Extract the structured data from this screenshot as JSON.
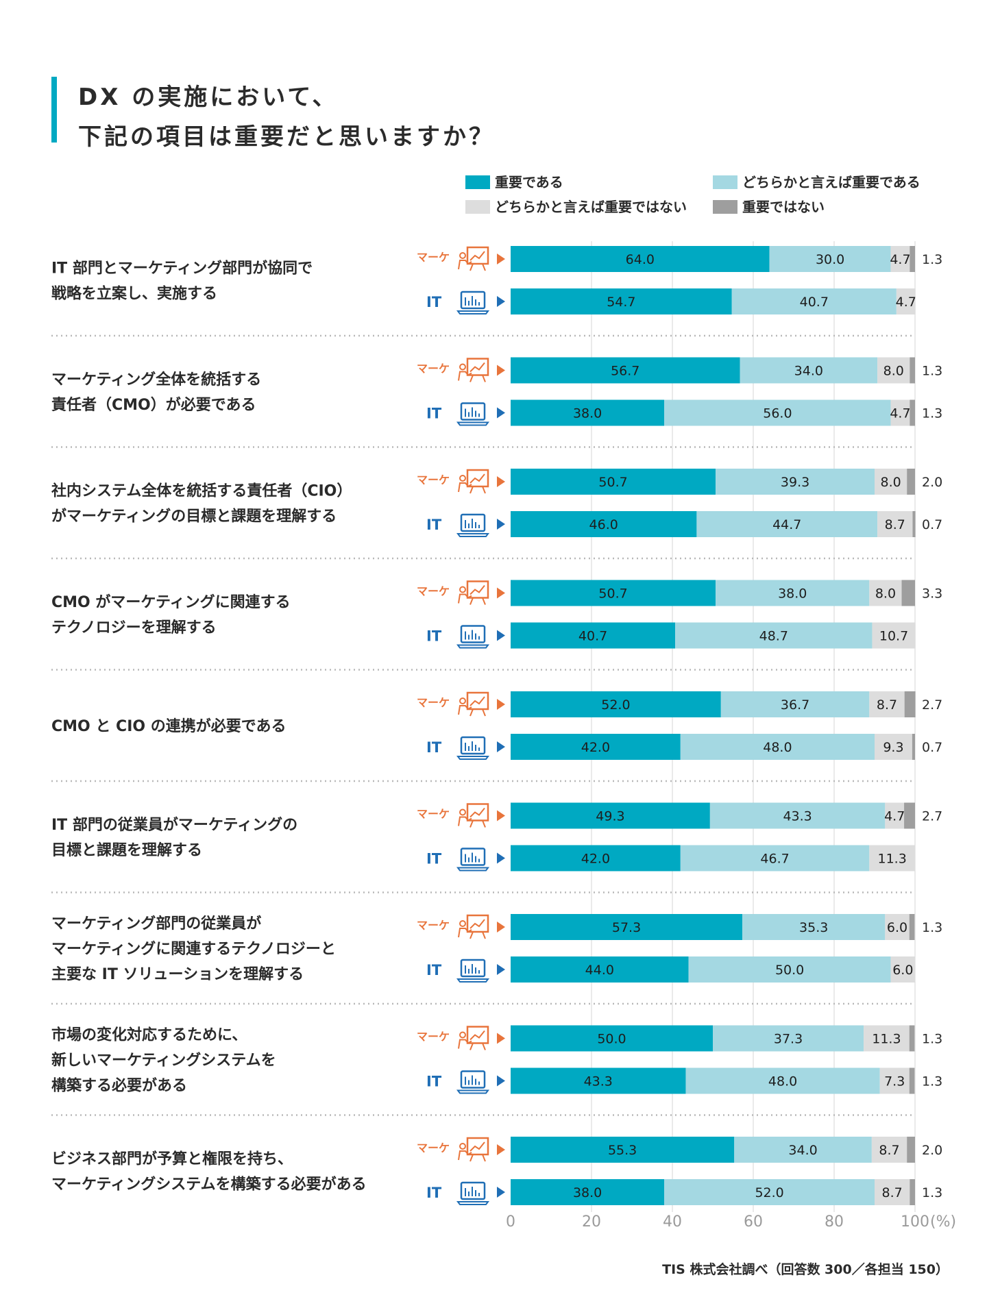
{
  "title": [
    "DX の実施において、",
    "下記の項目は重要だと思いますか？"
  ],
  "source": "TIS 株式会社調べ（回答数 300／各担当 150）",
  "group_labels": {
    "marketing": "マーケ",
    "it": "IT"
  },
  "icons": {
    "marketing": "presenter-chart-icon",
    "it": "laptop-chart-icon"
  },
  "colors": {
    "accent_bar": "#00a9c2",
    "marketing_text": "#e8743b",
    "it_text": "#1f6eb5",
    "important": "#00a9c2",
    "somewhat_important": "#a4d8e2",
    "somewhat_not_important": "#dddddd",
    "not_important": "#9e9e9e"
  },
  "chart_data": {
    "type": "bar",
    "orientation": "horizontal",
    "stacked": true,
    "xlim": [
      0,
      100
    ],
    "xticks": [
      "0",
      "20",
      "40",
      "60",
      "80",
      "100"
    ],
    "xunit": "(%)",
    "grid": true,
    "legend_position": "top-right",
    "series_names": [
      "重要である",
      "どちらかと言えば重要である",
      "どちらかと言えば重要ではない",
      "重要ではない"
    ],
    "items": [
      {
        "question": [
          "IT 部門とマーケティング部門が協同で",
          "戦略を立案し、実施する"
        ],
        "marketing": [
          64.0,
          30.0,
          4.7,
          1.3
        ],
        "it": [
          54.7,
          40.7,
          4.7,
          0
        ]
      },
      {
        "question": [
          "マーケティング全体を統括する",
          "責任者（CMO）が必要である"
        ],
        "marketing": [
          56.7,
          34.0,
          8.0,
          1.3
        ],
        "it": [
          38.0,
          56.0,
          4.7,
          1.3
        ]
      },
      {
        "question": [
          "社内システム全体を統括する責任者（CIO）",
          "がマーケティングの目標と課題を理解する"
        ],
        "marketing": [
          50.7,
          39.3,
          8.0,
          2.0
        ],
        "it": [
          46.0,
          44.7,
          8.7,
          0.7
        ]
      },
      {
        "question": [
          "CMO がマーケティングに関連する",
          "テクノロジーを理解する"
        ],
        "marketing": [
          50.7,
          38.0,
          8.0,
          3.3
        ],
        "it": [
          40.7,
          48.7,
          10.7,
          0
        ]
      },
      {
        "question": [
          "CMO と CIO の連携が必要である"
        ],
        "marketing": [
          52.0,
          36.7,
          8.7,
          2.7
        ],
        "it": [
          42.0,
          48.0,
          9.3,
          0.7
        ]
      },
      {
        "question": [
          "IT 部門の従業員がマーケティングの",
          "目標と課題を理解する"
        ],
        "marketing": [
          49.3,
          43.3,
          4.7,
          2.7
        ],
        "it": [
          42.0,
          46.7,
          11.3,
          0
        ]
      },
      {
        "question": [
          "マーケティング部門の従業員が",
          "マーケティングに関連するテクノロジーと",
          "主要な IT ソリューションを理解する"
        ],
        "marketing": [
          57.3,
          35.3,
          6.0,
          1.3
        ],
        "it": [
          44.0,
          50.0,
          6.0,
          0
        ]
      },
      {
        "question": [
          "市場の変化対応するために、",
          "新しいマーケティングシステムを",
          "構築する必要がある"
        ],
        "marketing": [
          50.0,
          37.3,
          11.3,
          1.3
        ],
        "it": [
          43.3,
          48.0,
          7.3,
          1.3
        ]
      },
      {
        "question": [
          "ビジネス部門が予算と権限を持ち、",
          "マーケティングシステムを構築する必要がある"
        ],
        "marketing": [
          55.3,
          34.0,
          8.7,
          2.0
        ],
        "it": [
          38.0,
          52.0,
          8.7,
          1.3
        ]
      }
    ]
  }
}
